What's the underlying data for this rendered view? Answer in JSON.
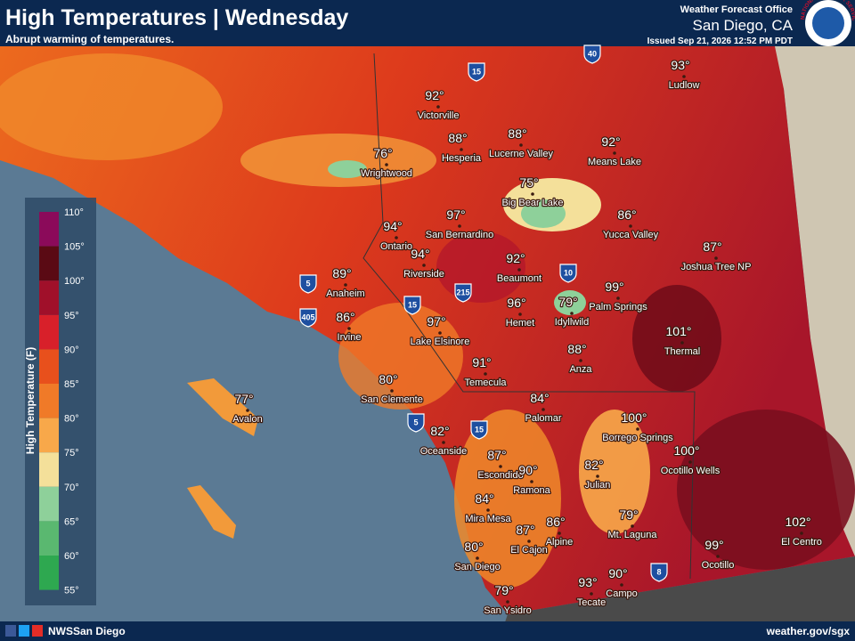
{
  "header": {
    "title": "High Temperatures | Wednesday",
    "subtitle": "Abrupt warming of temperatures.",
    "office": "Weather Forecast Office",
    "location": "San Diego, CA",
    "issued": "Issued Sep 21, 2026 12:52 PM PDT",
    "logo": "NATIONAL WEATHER SERVICE"
  },
  "legend": {
    "title": "High Temperature (F)",
    "ticks": [
      "110°",
      "105°",
      "100°",
      "95°",
      "90°",
      "85°",
      "80°",
      "75°",
      "70°",
      "65°",
      "60°",
      "55°"
    ]
  },
  "cities": [
    {
      "temp": "93°",
      "name": "Ludlow"
    },
    {
      "temp": "92°",
      "name": "Victorville"
    },
    {
      "temp": "88°",
      "name": "Hesperia"
    },
    {
      "temp": "88°",
      "name": "Lucerne Valley"
    },
    {
      "temp": "92°",
      "name": "Means Lake"
    },
    {
      "temp": "76°",
      "name": "Wrightwood"
    },
    {
      "temp": "75°",
      "name": "Big Bear Lake"
    },
    {
      "temp": "86°",
      "name": "Yucca Valley"
    },
    {
      "temp": "87°",
      "name": "Joshua Tree NP"
    },
    {
      "temp": "94°",
      "name": "Ontario"
    },
    {
      "temp": "97°",
      "name": "San Bernardino"
    },
    {
      "temp": "94°",
      "name": "Riverside"
    },
    {
      "temp": "92°",
      "name": "Beaumont"
    },
    {
      "temp": "89°",
      "name": "Anaheim"
    },
    {
      "temp": "99°",
      "name": "Palm Springs"
    },
    {
      "temp": "96°",
      "name": "Hemet"
    },
    {
      "temp": "79°",
      "name": "Idyllwild"
    },
    {
      "temp": "86°",
      "name": "Irvine"
    },
    {
      "temp": "97°",
      "name": "Lake Elsinore"
    },
    {
      "temp": "101°",
      "name": "Thermal"
    },
    {
      "temp": "88°",
      "name": "Anza"
    },
    {
      "temp": "91°",
      "name": "Temecula"
    },
    {
      "temp": "80°",
      "name": "San Clemente"
    },
    {
      "temp": "77°",
      "name": "Avalon"
    },
    {
      "temp": "84°",
      "name": "Palomar"
    },
    {
      "temp": "100°",
      "name": "Borrego Springs"
    },
    {
      "temp": "82°",
      "name": "Oceanside"
    },
    {
      "temp": "100°",
      "name": "Ocotillo Wells"
    },
    {
      "temp": "87°",
      "name": "Escondido"
    },
    {
      "temp": "90°",
      "name": "Ramona"
    },
    {
      "temp": "82°",
      "name": "Julian"
    },
    {
      "temp": "84°",
      "name": "Mira Mesa"
    },
    {
      "temp": "86°",
      "name": "Alpine"
    },
    {
      "temp": "79°",
      "name": "Mt. Laguna"
    },
    {
      "temp": "102°",
      "name": "El Centro"
    },
    {
      "temp": "87°",
      "name": "El Cajon"
    },
    {
      "temp": "80°",
      "name": "San Diego"
    },
    {
      "temp": "99°",
      "name": "Ocotillo"
    },
    {
      "temp": "90°",
      "name": "Campo"
    },
    {
      "temp": "93°",
      "name": "Tecate"
    },
    {
      "temp": "79°",
      "name": "San Ysidro"
    }
  ],
  "highways": [
    "15",
    "40",
    "10",
    "5",
    "405",
    "215",
    "15",
    "5",
    "15",
    "8"
  ],
  "footer": {
    "account": "NWSSan Diego",
    "url": "weather.gov/sgx"
  }
}
